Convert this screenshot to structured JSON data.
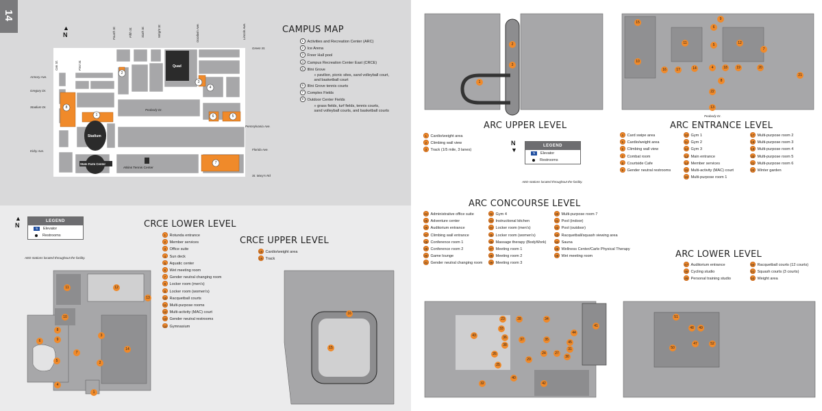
{
  "page_number": "14",
  "colors": {
    "orange": "#f08a2a",
    "bldg_gray": "#a7a7a9",
    "dark": "#3a3a3a",
    "elevator_blue": "#1f4ea0"
  },
  "campus": {
    "title": "CAMPUS MAP",
    "north": "N",
    "streets": {
      "green": "Green St.",
      "armory": "Armory Ave.",
      "gregory": "Gregory Dr.",
      "stadium": "Stadium Dr.",
      "kirby": "Kirby Ave.",
      "pennsylvania": "Pennsylvania Ave.",
      "florida": "Florida Ave.",
      "stmarys": "St. Mary's Rd",
      "peabody": "Peabody Dr.",
      "oak": "Oak St.",
      "first": "First St.",
      "fourth": "Fourth St.",
      "fifth": "Fifth St.",
      "sixth": "Sixth St.",
      "wright": "Wright St.",
      "goodwin": "Goodwin Ave.",
      "lincoln": "Lincoln Ave."
    },
    "labels": {
      "quad": "Quad",
      "stadium": "Stadium",
      "state_farm": "State Farm Center",
      "atkins": "Atkins Tennis Center"
    },
    "items": [
      {
        "n": "1",
        "t": "Activities and Recreation Center (ARC)"
      },
      {
        "n": "2",
        "t": "Ice Arena"
      },
      {
        "n": "3",
        "t": "Freer Hall pool"
      },
      {
        "n": "4",
        "t": "Campus Recreation Center East (CRCE)"
      },
      {
        "n": "5",
        "t": "Illini Grove",
        "subs": [
          "» pavilion, picnic sites, sand volleyball court,",
          "and basketball court"
        ]
      },
      {
        "n": "6",
        "t": "Illini Grove tennis courts"
      },
      {
        "n": "7",
        "t": "Complex Fields"
      },
      {
        "n": "8",
        "t": "Outdoor Center Fields",
        "subs": [
          "» grass fields, turf fields, tennis courts,",
          "sand volleyball courts, and basketball courts"
        ]
      }
    ]
  },
  "legend": {
    "title": "LEGEND",
    "elevator": "Elevator",
    "restrooms": "Restrooms",
    "aed_note": "AED stations located throughout the facility."
  },
  "crce_lower": {
    "title": "CRCE LOWER LEVEL",
    "items": [
      {
        "n": "1",
        "t": "Rotunda entrance"
      },
      {
        "n": "2",
        "t": "Member services"
      },
      {
        "n": "3",
        "t": "Office suite"
      },
      {
        "n": "4",
        "t": "Sun deck"
      },
      {
        "n": "5",
        "t": "Aquatic center"
      },
      {
        "n": "6",
        "t": "Wet meeting room"
      },
      {
        "n": "7",
        "t": "Gender neutral changing room"
      },
      {
        "n": "8",
        "t": "Locker room (men's)"
      },
      {
        "n": "9",
        "t": "Locker room (women's)"
      },
      {
        "n": "10",
        "t": "Racquetball courts"
      },
      {
        "n": "11",
        "t": "Multi-purpose rooms"
      },
      {
        "n": "12",
        "t": "Multi-activity (MAC) court"
      },
      {
        "n": "13",
        "t": "Gender neutral restrooms"
      },
      {
        "n": "14",
        "t": "Gymnasium"
      }
    ]
  },
  "crce_upper": {
    "title": "CRCE UPPER LEVEL",
    "items": [
      {
        "n": "15",
        "t": "Cardio/weight area"
      },
      {
        "n": "16",
        "t": "Track"
      }
    ]
  },
  "arc_upper": {
    "title": "ARC UPPER LEVEL",
    "items": [
      {
        "n": "1",
        "t": "Cardio/weight area"
      },
      {
        "n": "2",
        "t": "Climbing wall view"
      },
      {
        "n": "3",
        "t": "Track (1/5 mile, 3 lanes)"
      }
    ]
  },
  "arc_entrance": {
    "title": "ARC ENTRANCE LEVEL",
    "street": "Peabody Dr.",
    "col1": [
      {
        "n": "4",
        "t": "Card swipe area"
      },
      {
        "n": "5",
        "t": "Cardio/weight area"
      },
      {
        "n": "6",
        "t": "Climbing wall view"
      },
      {
        "n": "7",
        "t": "Combat room"
      },
      {
        "n": "8",
        "t": "Courtside Cafe"
      },
      {
        "n": "9",
        "t": "Gender neutral restrooms"
      }
    ],
    "col2": [
      {
        "n": "10",
        "t": "Gym 1"
      },
      {
        "n": "11",
        "t": "Gym 2"
      },
      {
        "n": "12",
        "t": "Gym 3"
      },
      {
        "n": "13",
        "t": "Main entrance"
      },
      {
        "n": "14",
        "t": "Member services"
      },
      {
        "n": "15",
        "t": "Multi-activity (MAC) court"
      },
      {
        "n": "16",
        "t": "Multi-purpose room 1"
      }
    ],
    "col3": [
      {
        "n": "17",
        "t": "Multi-purpose room 2"
      },
      {
        "n": "18",
        "t": "Multi-purpose room 3"
      },
      {
        "n": "19",
        "t": "Multi-purpose room 4"
      },
      {
        "n": "20",
        "t": "Multi-purpose room 5"
      },
      {
        "n": "21",
        "t": "Multi-purpose room 6"
      },
      {
        "n": "22",
        "t": "Winter garden"
      }
    ]
  },
  "arc_concourse": {
    "title": "ARC CONCOURSE LEVEL",
    "col1": [
      {
        "n": "24",
        "t": "Administrative office suite"
      },
      {
        "n": "25",
        "t": "Adventure center"
      },
      {
        "n": "26",
        "t": "Auditorium entrance"
      },
      {
        "n": "27",
        "t": "Climbing wall entrance"
      },
      {
        "n": "28",
        "t": "Conference room 1"
      },
      {
        "n": "29",
        "t": "Conference room 2"
      },
      {
        "n": "30",
        "t": "Game lounge"
      },
      {
        "n": "31",
        "t": "Gender neutral changing room"
      }
    ],
    "col2": [
      {
        "n": "32",
        "t": "Gym 4"
      },
      {
        "n": "33",
        "t": "Instructional kitchen"
      },
      {
        "n": "34",
        "t": "Locker room (men's)"
      },
      {
        "n": "35",
        "t": "Locker room (women's)"
      },
      {
        "n": "36",
        "t": "Massage therapy (BodyWork)"
      },
      {
        "n": "37",
        "t": "Meeting room 1"
      },
      {
        "n": "38",
        "t": "Meeting room 2"
      },
      {
        "n": "39",
        "t": "Meeting room 3"
      }
    ],
    "col3": [
      {
        "n": "40",
        "t": "Multi-purpose room 7"
      },
      {
        "n": "41",
        "t": "Pool (indoor)"
      },
      {
        "n": "42",
        "t": "Pool (outdoor)"
      },
      {
        "n": "43",
        "t": "Racquetball/squash viewing area"
      },
      {
        "n": "44",
        "t": "Sauna"
      },
      {
        "n": "45",
        "t": "Wellness Center/Carle Physical Therapy"
      },
      {
        "n": "46",
        "t": "Wet meeting room"
      }
    ]
  },
  "arc_lower": {
    "title": "ARC LOWER LEVEL",
    "col1": [
      {
        "n": "47",
        "t": "Auditorium entrance"
      },
      {
        "n": "48",
        "t": "Cycling studio"
      },
      {
        "n": "49",
        "t": "Personal training studio"
      }
    ],
    "col2": [
      {
        "n": "50",
        "t": "Racquetball courts (12 courts)"
      },
      {
        "n": "51",
        "t": "Squash courts (3 courts)"
      },
      {
        "n": "52",
        "t": "Weight area"
      }
    ]
  }
}
